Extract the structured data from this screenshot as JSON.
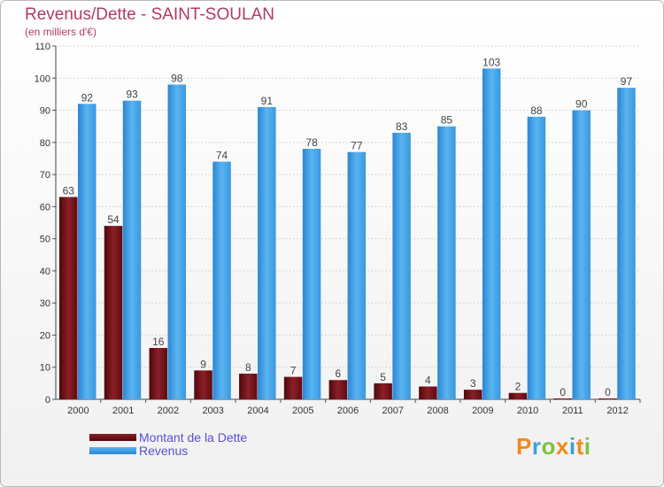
{
  "chart_data": {
    "type": "bar",
    "title": "Revenus/Dette - SAINT-SOULAN",
    "subtitle": "(en milliers d'€)",
    "categories": [
      "2000",
      "2001",
      "2002",
      "2003",
      "2004",
      "2005",
      "2006",
      "2007",
      "2008",
      "2009",
      "2010",
      "2011",
      "2012"
    ],
    "series": [
      {
        "name": "Montant de la Dette",
        "color": "#6b0f14",
        "values": [
          63,
          54,
          16,
          9,
          8,
          7,
          6,
          5,
          4,
          3,
          2,
          0,
          0
        ]
      },
      {
        "name": "Revenus",
        "color": "#3d9be3",
        "values": [
          92,
          93,
          98,
          74,
          91,
          78,
          77,
          83,
          85,
          103,
          88,
          90,
          97
        ]
      }
    ],
    "ylim": [
      0,
      110
    ],
    "yticks": [
      0,
      10,
      20,
      30,
      40,
      50,
      60,
      70,
      80,
      90,
      100,
      110
    ],
    "grid": true,
    "legend_position": "bottom-left"
  },
  "logo": {
    "letters": [
      "P",
      "r",
      "o",
      "x",
      "i",
      "t",
      "i"
    ],
    "colors": [
      "#f08a1c",
      "#3aa0e0",
      "#7cc242",
      "#f08a1c",
      "#3aa0e0",
      "#f08a1c",
      "#7cc242"
    ]
  }
}
